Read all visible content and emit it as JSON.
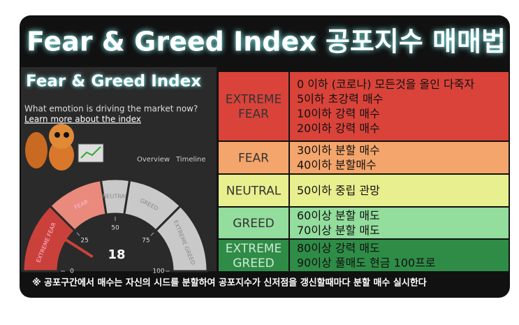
{
  "title": "Fear & Greed Index 공포지수 매매법",
  "panel": {
    "title": "Fear & Greed Index",
    "subtitle": "What emotion is driving the market now?",
    "link": "Learn more about the index",
    "tabs": [
      "Overview",
      "Timeline"
    ],
    "gauge": {
      "value": 18,
      "min": 0,
      "max": 100,
      "ticks": [
        0,
        25,
        50,
        75,
        100
      ],
      "segments": [
        {
          "label": "EXTREME FEAR",
          "end": 25,
          "color": "#c9413a"
        },
        {
          "label": "FEAR",
          "end": 45,
          "color": "#e98a7c"
        },
        {
          "label": "NEUTRAL",
          "end": 55,
          "color": "#c9c9c9"
        },
        {
          "label": "GREED",
          "end": 75,
          "color": "#c9c9c9"
        },
        {
          "label": "EXTREME GREED",
          "end": 100,
          "color": "#c9c9c9"
        }
      ]
    }
  },
  "table": {
    "rows": [
      {
        "label": [
          "EXTREME",
          "FEAR"
        ],
        "color": "#d9433a",
        "lines": [
          "0 이하 (코로나) 모든것을 올인 다죽자",
          "5이하 초강력 매수",
          "10이하  강력 매수",
          "20이하 강력 매수"
        ]
      },
      {
        "label": [
          "FEAR"
        ],
        "color": "#f3a56b",
        "lines": [
          "30이하 분할 매수",
          "40이하 분할매수"
        ]
      },
      {
        "label": [
          "NEUTRAL"
        ],
        "color": "#e8ef8e",
        "lines": [
          "50이하 중립 관망"
        ]
      },
      {
        "label": [
          "GREED"
        ],
        "color": "#93dd9d",
        "lines": [
          "60이상 분할 매도",
          "70이상 분할 매도"
        ]
      },
      {
        "label": [
          "EXTREME",
          "GREED"
        ],
        "color": "#2f8c47",
        "lines": [
          "80이상 강력 매도",
          "90이상 풀매도 현금 100프로"
        ]
      }
    ]
  },
  "note": "※ 공포구간에서 매수는 자신의 시드를 분할하여 공포지수가 신저점을 갱신할때마다 분할 매수 실시한다"
}
